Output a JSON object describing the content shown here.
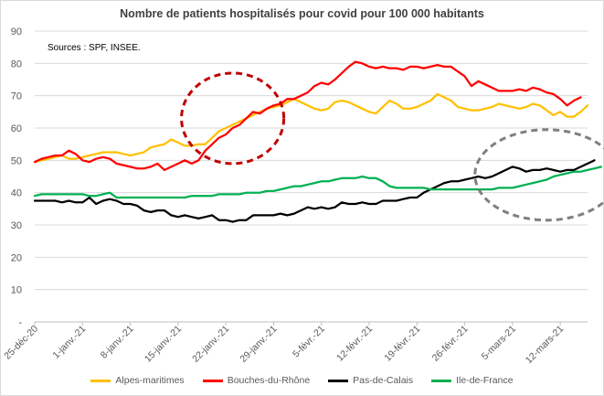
{
  "chart_data": {
    "type": "line",
    "title": "Nombre de patients hospitalisés pour covid pour 100 000 habitants",
    "source_note": "Sources : SPF, INSEE.",
    "ylim": [
      0,
      90
    ],
    "yticks": [
      "-",
      "10",
      "20",
      "30",
      "40",
      "50",
      "60",
      "70",
      "80",
      "90"
    ],
    "xlim": [
      0,
      81
    ],
    "xticks": [
      {
        "i": 0,
        "label": "25-déc-20"
      },
      {
        "i": 7,
        "label": "1-janv.-21"
      },
      {
        "i": 14,
        "label": "8-janv.-21"
      },
      {
        "i": 21,
        "label": "15-janv.-21"
      },
      {
        "i": 28,
        "label": "22-janv.-21"
      },
      {
        "i": 35,
        "label": "29-janv.-21"
      },
      {
        "i": 42,
        "label": "5-févr.-21"
      },
      {
        "i": 49,
        "label": "12-févr.-21"
      },
      {
        "i": 56,
        "label": "19-févr.-21"
      },
      {
        "i": 63,
        "label": "26-févr.-21"
      },
      {
        "i": 70,
        "label": "5-mars-21"
      },
      {
        "i": 77,
        "label": "12-mars-21"
      }
    ],
    "grid": true,
    "legend_position": "bottom",
    "series": [
      {
        "name": "Alpes-maritimes",
        "color": "#FFC000",
        "values": [
          49.5,
          50,
          50.5,
          51,
          51.5,
          50.5,
          50.5,
          51,
          51.5,
          52,
          52.5,
          52.5,
          52.5,
          52,
          51.5,
          52,
          52.5,
          54,
          54.5,
          55,
          56.5,
          55.5,
          54.5,
          54.5,
          55,
          55,
          57,
          59,
          60,
          61,
          62,
          63,
          64,
          65,
          66,
          66.5,
          67,
          68,
          69,
          68,
          67,
          66,
          65.5,
          66,
          68,
          68.5,
          68,
          67,
          66,
          65,
          64.5,
          66.5,
          68.5,
          67.5,
          66,
          66,
          66.5,
          67.5,
          68.5,
          70.5,
          69.5,
          68.5,
          66.5,
          66,
          65.5,
          65.5,
          66,
          66.5,
          67.5,
          67,
          66.5,
          66,
          66.5,
          67.5,
          67,
          65.5,
          64,
          65,
          63.5,
          63.5,
          65,
          67
        ]
      },
      {
        "name": "Bouches-du-Rhône",
        "color": "#FF0000",
        "values": [
          49.5,
          50.5,
          51,
          51.5,
          51.5,
          53,
          52,
          50,
          49.5,
          50.5,
          51,
          50.5,
          49,
          48.5,
          48,
          47.5,
          47.5,
          48,
          49,
          47,
          48,
          49,
          50,
          49,
          50,
          53,
          55,
          57,
          58,
          60,
          61,
          63,
          65,
          64.5,
          66,
          67,
          67.5,
          69,
          69,
          70,
          71,
          73,
          74,
          73.5,
          75,
          77,
          79,
          80.5,
          80,
          79,
          78.5,
          79,
          78.5,
          78.5,
          78,
          79,
          79,
          78.5,
          79,
          79.5,
          79,
          79,
          77.5,
          76,
          73,
          74.5,
          73.5,
          72.5,
          71.5,
          71.5,
          71.5,
          72,
          71.5,
          72.5,
          72,
          71,
          70.5,
          69,
          67,
          68.5,
          69.5
        ]
      },
      {
        "name": "Pas-de-Calais",
        "color": "#000000",
        "values": [
          37.5,
          37.5,
          37.5,
          37.5,
          37,
          37.5,
          37,
          37,
          38.5,
          36.5,
          37.5,
          38,
          37.5,
          36.5,
          36.5,
          36,
          34.5,
          34,
          34.5,
          34.5,
          33,
          32.5,
          33,
          32.5,
          32,
          32.5,
          33,
          31.5,
          31.5,
          31,
          31.5,
          31.5,
          33,
          33,
          33,
          33,
          33.5,
          33,
          33.5,
          34.5,
          35.5,
          35,
          35.5,
          35,
          35.5,
          37,
          36.5,
          36.5,
          37,
          36.5,
          36.5,
          37.5,
          37.5,
          37.5,
          38,
          38.5,
          38.5,
          40,
          41,
          42,
          43,
          43.5,
          43.5,
          44,
          44.5,
          45,
          44.5,
          45,
          46,
          47,
          48,
          47.5,
          46.5,
          47,
          47,
          47.5,
          47,
          46.5,
          47,
          47,
          48,
          49,
          50
        ]
      },
      {
        "name": "Ile-de-France",
        "color": "#00B050",
        "values": [
          39,
          39.5,
          39.5,
          39.5,
          39.5,
          39.5,
          39.5,
          39.5,
          39,
          39,
          39.5,
          40,
          38.5,
          38.5,
          38.5,
          38.5,
          38.5,
          38.5,
          38.5,
          38.5,
          38.5,
          38.5,
          38.5,
          39,
          39,
          39,
          39,
          39.5,
          39.5,
          39.5,
          39.5,
          40,
          40,
          40,
          40.5,
          40.5,
          41,
          41.5,
          42,
          42,
          42.5,
          43,
          43.5,
          43.5,
          44,
          44.5,
          44.5,
          44.5,
          45,
          44.5,
          44.5,
          43.5,
          42,
          41.5,
          41.5,
          41.5,
          41.5,
          41.5,
          41,
          41,
          41,
          41,
          41,
          41,
          41,
          41,
          41,
          41,
          41.5,
          41.5,
          41.5,
          42,
          42.5,
          43,
          43.5,
          44,
          45,
          45.5,
          46,
          46.5,
          46.5,
          47,
          47.5,
          48
        ]
      }
    ],
    "annotations": [
      {
        "shape": "dashed-ellipse",
        "color": "#C00000",
        "cx": 29,
        "cy": 63,
        "rx": 7.5,
        "ry": 14
      },
      {
        "shape": "dashed-ellipse",
        "color": "#7F7F7F",
        "cx": 75,
        "cy": 45.5,
        "rx": 10.5,
        "ry": 14
      }
    ]
  }
}
